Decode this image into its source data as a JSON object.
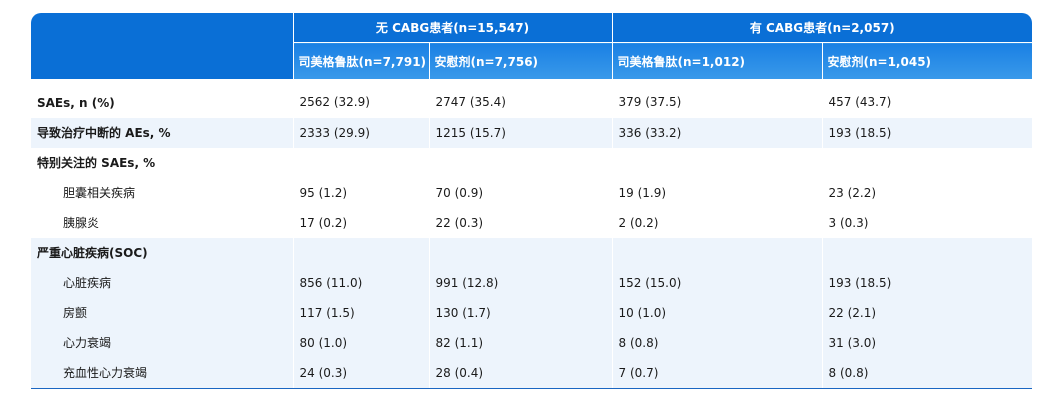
{
  "header": {
    "group_no": "无 CABG患者(n=15,547)",
    "group_yes": "有 CABG患者(n=2,057)",
    "sub": [
      "司美格鲁肽(n=7,791)",
      "安慰剂(n=7,756)",
      "司美格鲁肽(n=1,012)",
      "安慰剂(n=1,045)"
    ]
  },
  "rows": [
    {
      "label": "SAEs, n (%)",
      "v": [
        "2562 (32.9)",
        "2747 (35.4)",
        "379 (37.5)",
        "457 (43.7)"
      ]
    },
    {
      "label": "导致治疗中断的 AEs, %",
      "v": [
        "2333 (29.9)",
        "1215 (15.7)",
        "336 (33.2)",
        "193 (18.5)"
      ]
    },
    {
      "label": "特别关注的 SAEs, %",
      "v": [
        "",
        "",
        "",
        ""
      ]
    },
    {
      "label": "胆囊相关疾病",
      "v": [
        "95 (1.2)",
        "70 (0.9)",
        "19 (1.9)",
        "23 (2.2)"
      ]
    },
    {
      "label": "胰腺炎",
      "v": [
        "17 (0.2)",
        "22 (0.3)",
        "2 (0.2)",
        "3 (0.3)"
      ]
    },
    {
      "label": "严重心脏疾病(SOC)",
      "v": [
        "",
        "",
        "",
        ""
      ]
    },
    {
      "label": "心脏疾病",
      "v": [
        "856 (11.0)",
        "991 (12.8)",
        "152 (15.0)",
        "193 (18.5)"
      ]
    },
    {
      "label": "房颤",
      "v": [
        "117 (1.5)",
        "130 (1.7)",
        "10 (1.0)",
        "22 (2.1)"
      ]
    },
    {
      "label": "心力衰竭",
      "v": [
        "80 (1.0)",
        "82 (1.1)",
        "8 (0.8)",
        "31 (3.0)"
      ]
    },
    {
      "label": "充血性心力衰竭",
      "v": [
        "24 (0.3)",
        "28 (0.4)",
        "7 (0.7)",
        "8 (0.8)"
      ]
    }
  ]
}
